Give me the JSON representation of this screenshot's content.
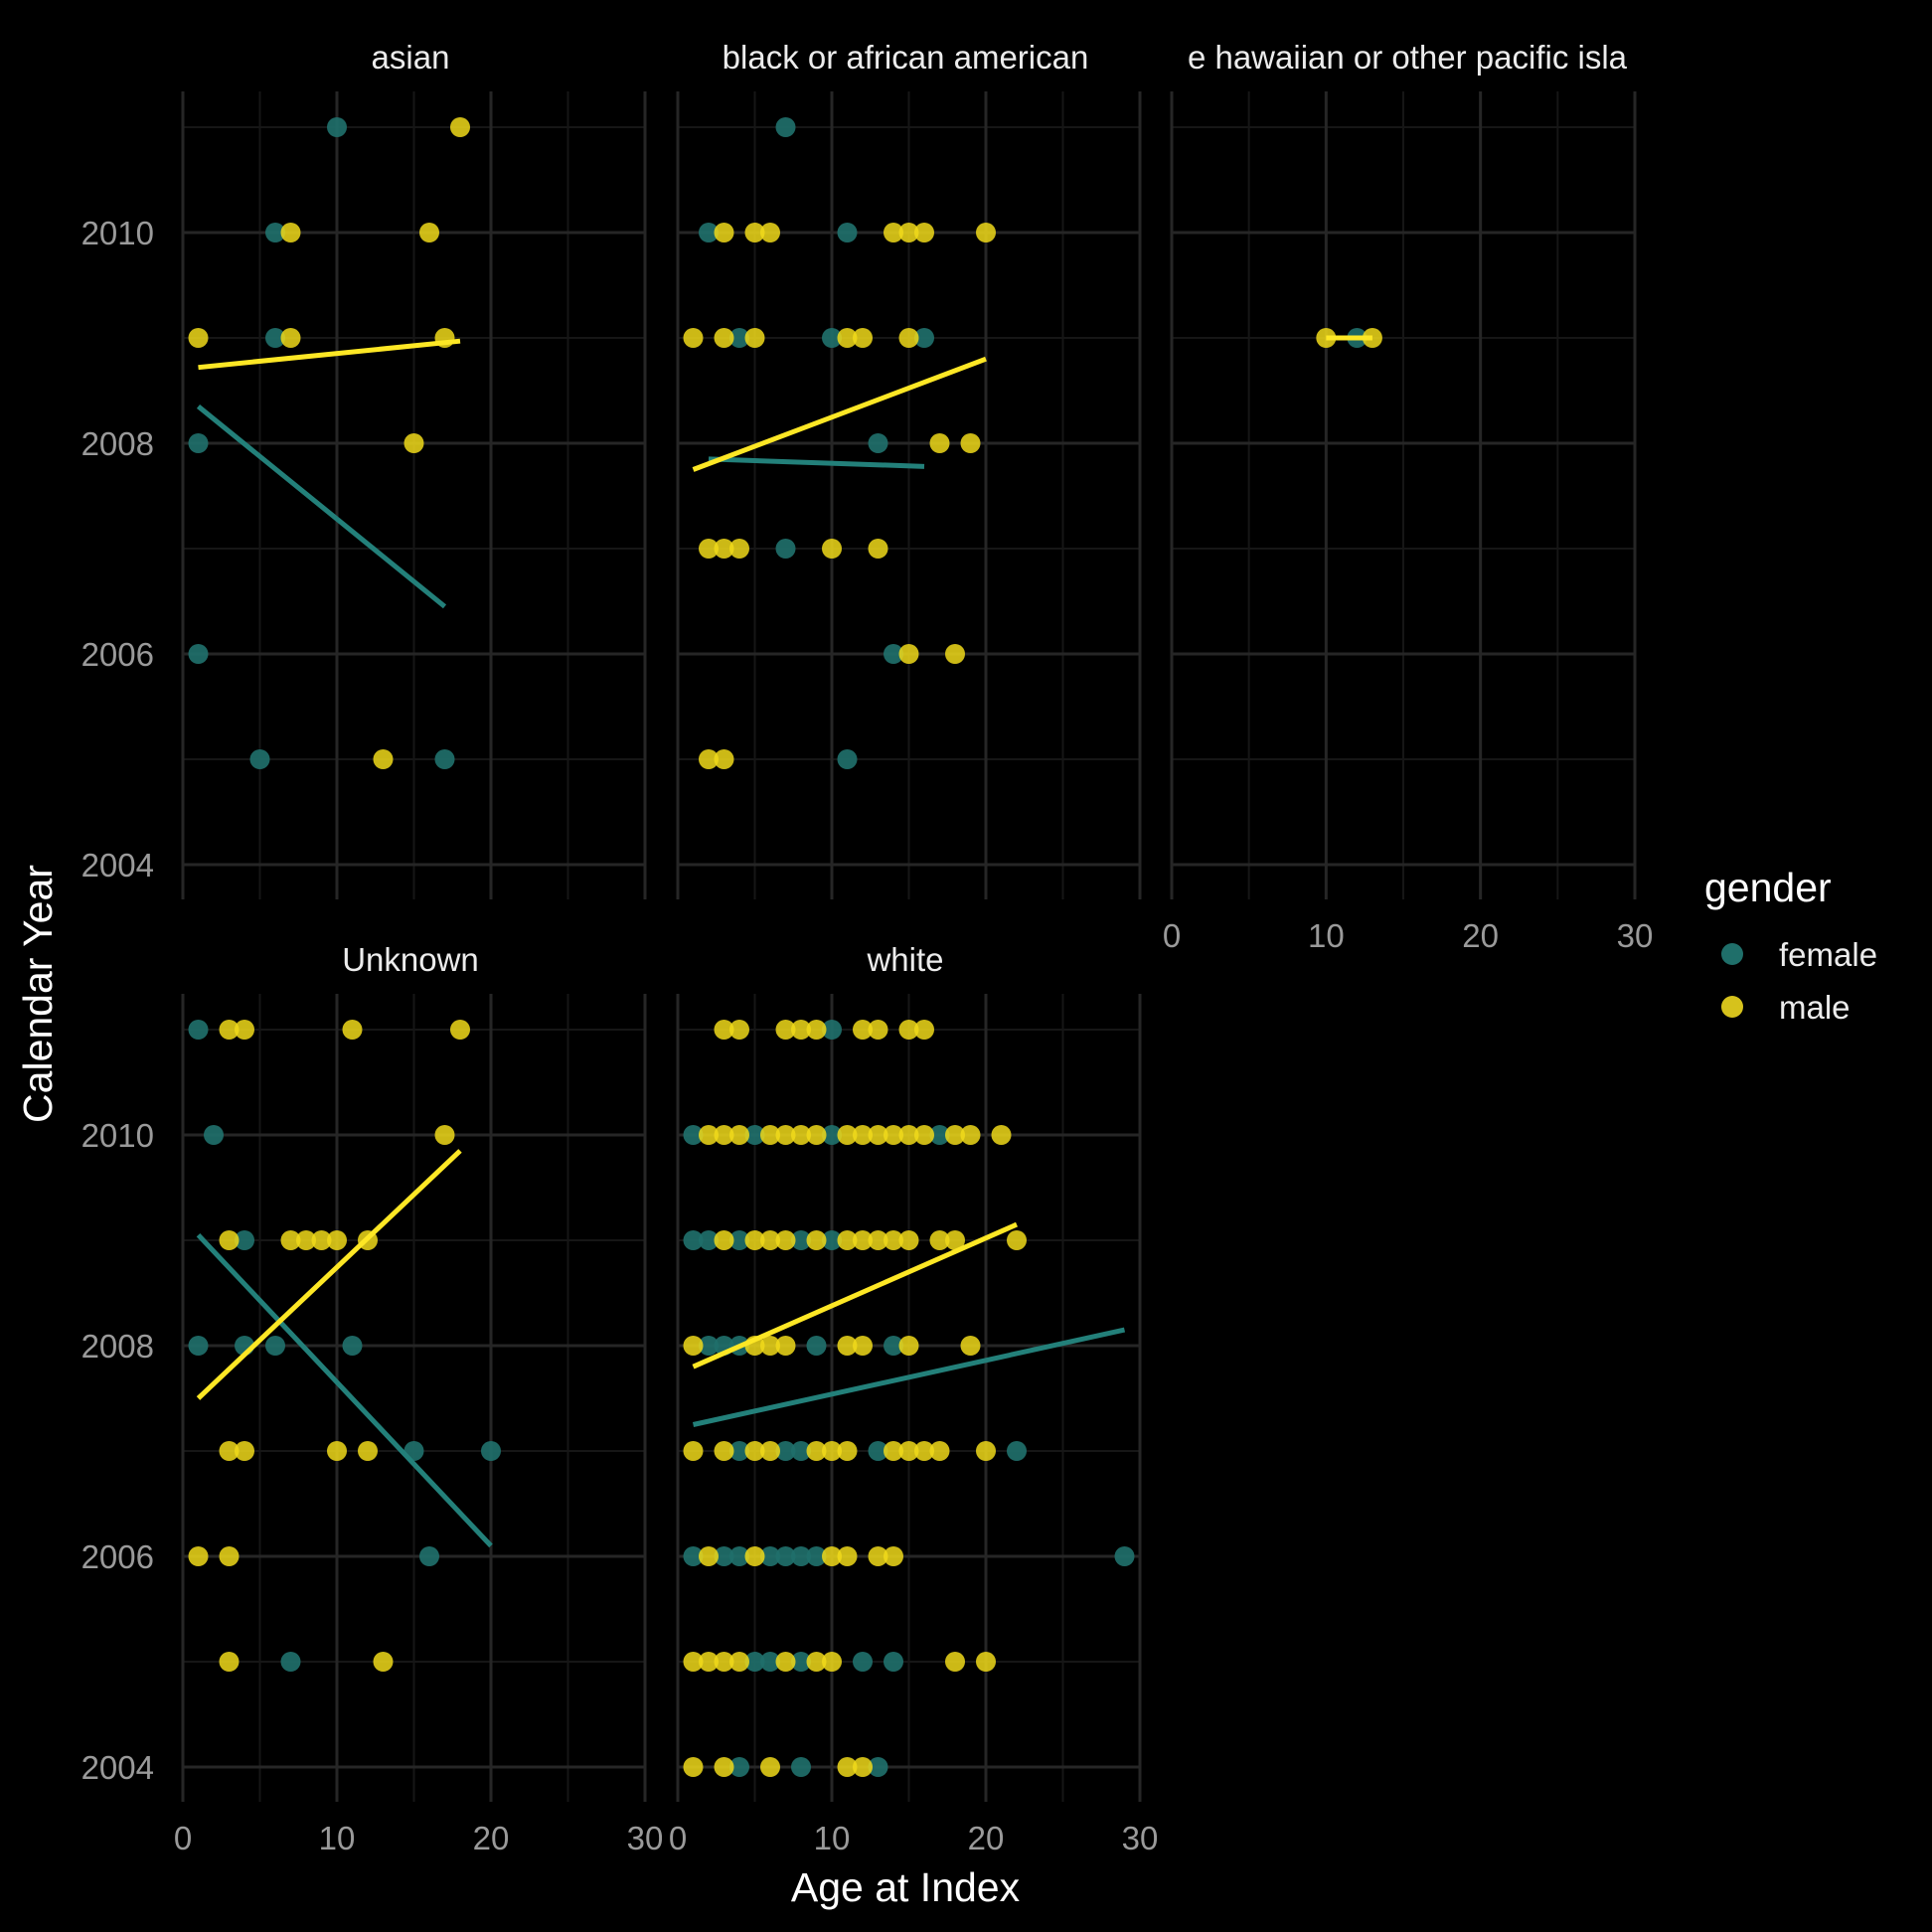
{
  "chart_data": {
    "type": "scatter",
    "title": "",
    "xlabel": "Age at Index",
    "ylabel": "Calendar Year",
    "xlim": [
      0,
      30
    ],
    "ylim": [
      2003.7,
      2011.3
    ],
    "x_ticks": [
      "0",
      "10",
      "20",
      "30"
    ],
    "y_ticks": [
      "2004",
      "2006",
      "2008",
      "2010"
    ],
    "grid": true,
    "smooth": "linear fit per gender",
    "legend": {
      "title": "gender",
      "position": "right",
      "entries": [
        {
          "name": "female",
          "color": "#1f6f6a"
        },
        {
          "name": "male",
          "color": "#f0d91a"
        }
      ]
    },
    "colors": {
      "female": "#1f6f6a",
      "male": "#f0d91a",
      "female_line": "#23807a",
      "male_line": "#fde725",
      "background": "#000000"
    },
    "panels": [
      {
        "strip": "asian",
        "female": [
          [
            10,
            2011
          ],
          [
            6,
            2010
          ],
          [
            6,
            2009
          ],
          [
            1,
            2008
          ],
          [
            1,
            2006
          ],
          [
            5,
            2005
          ],
          [
            17,
            2005
          ]
        ],
        "male": [
          [
            18,
            2011
          ],
          [
            7,
            2010
          ],
          [
            16,
            2010
          ],
          [
            1,
            2009
          ],
          [
            7,
            2009
          ],
          [
            17,
            2009
          ],
          [
            15,
            2008
          ],
          [
            13,
            2005
          ]
        ],
        "fit_female": [
          [
            1,
            2008.35
          ],
          [
            17,
            2006.45
          ]
        ],
        "fit_male": [
          [
            1,
            2008.72
          ],
          [
            18,
            2008.97
          ]
        ]
      },
      {
        "strip": "black or african american",
        "female": [
          [
            7,
            2011
          ],
          [
            2,
            2010
          ],
          [
            11,
            2010
          ],
          [
            4,
            2009
          ],
          [
            10,
            2009
          ],
          [
            16,
            2009
          ],
          [
            13,
            2008
          ],
          [
            7,
            2007
          ],
          [
            14,
            2006
          ],
          [
            11,
            2005
          ]
        ],
        "male": [
          [
            3,
            2010
          ],
          [
            5,
            2010
          ],
          [
            6,
            2010
          ],
          [
            14,
            2010
          ],
          [
            15,
            2010
          ],
          [
            16,
            2010
          ],
          [
            20,
            2010
          ],
          [
            1,
            2009
          ],
          [
            3,
            2009
          ],
          [
            5,
            2009
          ],
          [
            11,
            2009
          ],
          [
            12,
            2009
          ],
          [
            15,
            2009
          ],
          [
            17,
            2008
          ],
          [
            19,
            2008
          ],
          [
            2,
            2007
          ],
          [
            3,
            2007
          ],
          [
            4,
            2007
          ],
          [
            10,
            2007
          ],
          [
            13,
            2007
          ],
          [
            15,
            2006
          ],
          [
            18,
            2006
          ],
          [
            2,
            2005
          ],
          [
            3,
            2005
          ]
        ],
        "fit_female": [
          [
            2,
            2007.85
          ],
          [
            16,
            2007.78
          ]
        ],
        "fit_male": [
          [
            1,
            2007.75
          ],
          [
            20,
            2008.8
          ]
        ]
      },
      {
        "strip": "native hawaiian or other pacific islander",
        "female": [
          [
            12,
            2009
          ]
        ],
        "male": [
          [
            10,
            2009
          ],
          [
            13,
            2009
          ]
        ],
        "fit_female": [],
        "fit_male": [
          [
            10,
            2009
          ],
          [
            13,
            2009
          ]
        ]
      },
      {
        "strip": "Unknown",
        "female": [
          [
            1,
            2011
          ],
          [
            2,
            2010
          ],
          [
            4,
            2009
          ],
          [
            1,
            2008
          ],
          [
            4,
            2008
          ],
          [
            6,
            2008
          ],
          [
            11,
            2008
          ],
          [
            15,
            2007
          ],
          [
            20,
            2007
          ],
          [
            16,
            2006
          ],
          [
            7,
            2005
          ]
        ],
        "male": [
          [
            3,
            2011
          ],
          [
            4,
            2011
          ],
          [
            11,
            2011
          ],
          [
            18,
            2011
          ],
          [
            17,
            2010
          ],
          [
            3,
            2009
          ],
          [
            7,
            2009
          ],
          [
            8,
            2009
          ],
          [
            9,
            2009
          ],
          [
            10,
            2009
          ],
          [
            12,
            2009
          ],
          [
            3,
            2007
          ],
          [
            4,
            2007
          ],
          [
            10,
            2007
          ],
          [
            12,
            2007
          ],
          [
            1,
            2006
          ],
          [
            3,
            2006
          ],
          [
            3,
            2005
          ],
          [
            13,
            2005
          ]
        ],
        "fit_female": [
          [
            1,
            2009.05
          ],
          [
            20,
            2006.1
          ]
        ],
        "fit_male": [
          [
            1,
            2007.5
          ],
          [
            18,
            2009.85
          ]
        ]
      },
      {
        "strip": "white",
        "female": [
          [
            10,
            2011
          ],
          [
            1,
            2010
          ],
          [
            5,
            2010
          ],
          [
            10,
            2010
          ],
          [
            17,
            2010
          ],
          [
            1,
            2009
          ],
          [
            2,
            2009
          ],
          [
            4,
            2009
          ],
          [
            8,
            2009
          ],
          [
            10,
            2009
          ],
          [
            2,
            2008
          ],
          [
            3,
            2008
          ],
          [
            4,
            2008
          ],
          [
            9,
            2008
          ],
          [
            14,
            2008
          ],
          [
            4,
            2007
          ],
          [
            7,
            2007
          ],
          [
            8,
            2007
          ],
          [
            13,
            2007
          ],
          [
            22,
            2007
          ],
          [
            1,
            2006
          ],
          [
            3,
            2006
          ],
          [
            4,
            2006
          ],
          [
            6,
            2006
          ],
          [
            7,
            2006
          ],
          [
            8,
            2006
          ],
          [
            9,
            2006
          ],
          [
            29,
            2006
          ],
          [
            5,
            2005
          ],
          [
            6,
            2005
          ],
          [
            8,
            2005
          ],
          [
            12,
            2005
          ],
          [
            14,
            2005
          ],
          [
            4,
            2004
          ],
          [
            8,
            2004
          ],
          [
            13,
            2004
          ]
        ],
        "male": [
          [
            3,
            2011
          ],
          [
            4,
            2011
          ],
          [
            7,
            2011
          ],
          [
            8,
            2011
          ],
          [
            9,
            2011
          ],
          [
            12,
            2011
          ],
          [
            13,
            2011
          ],
          [
            15,
            2011
          ],
          [
            16,
            2011
          ],
          [
            2,
            2010
          ],
          [
            3,
            2010
          ],
          [
            4,
            2010
          ],
          [
            6,
            2010
          ],
          [
            7,
            2010
          ],
          [
            8,
            2010
          ],
          [
            9,
            2010
          ],
          [
            11,
            2010
          ],
          [
            12,
            2010
          ],
          [
            13,
            2010
          ],
          [
            14,
            2010
          ],
          [
            15,
            2010
          ],
          [
            16,
            2010
          ],
          [
            18,
            2010
          ],
          [
            19,
            2010
          ],
          [
            21,
            2010
          ],
          [
            3,
            2009
          ],
          [
            5,
            2009
          ],
          [
            6,
            2009
          ],
          [
            7,
            2009
          ],
          [
            9,
            2009
          ],
          [
            11,
            2009
          ],
          [
            12,
            2009
          ],
          [
            13,
            2009
          ],
          [
            14,
            2009
          ],
          [
            15,
            2009
          ],
          [
            17,
            2009
          ],
          [
            18,
            2009
          ],
          [
            22,
            2009
          ],
          [
            1,
            2008
          ],
          [
            5,
            2008
          ],
          [
            6,
            2008
          ],
          [
            7,
            2008
          ],
          [
            11,
            2008
          ],
          [
            12,
            2008
          ],
          [
            15,
            2008
          ],
          [
            19,
            2008
          ],
          [
            1,
            2007
          ],
          [
            3,
            2007
          ],
          [
            5,
            2007
          ],
          [
            6,
            2007
          ],
          [
            9,
            2007
          ],
          [
            10,
            2007
          ],
          [
            11,
            2007
          ],
          [
            14,
            2007
          ],
          [
            15,
            2007
          ],
          [
            16,
            2007
          ],
          [
            17,
            2007
          ],
          [
            20,
            2007
          ],
          [
            2,
            2006
          ],
          [
            5,
            2006
          ],
          [
            10,
            2006
          ],
          [
            11,
            2006
          ],
          [
            13,
            2006
          ],
          [
            14,
            2006
          ],
          [
            1,
            2005
          ],
          [
            2,
            2005
          ],
          [
            3,
            2005
          ],
          [
            4,
            2005
          ],
          [
            7,
            2005
          ],
          [
            9,
            2005
          ],
          [
            10,
            2005
          ],
          [
            18,
            2005
          ],
          [
            20,
            2005
          ],
          [
            1,
            2004
          ],
          [
            3,
            2004
          ],
          [
            6,
            2004
          ],
          [
            11,
            2004
          ],
          [
            12,
            2004
          ]
        ],
        "fit_female": [
          [
            1,
            2007.25
          ],
          [
            29,
            2008.15
          ]
        ],
        "fit_male": [
          [
            1,
            2007.8
          ],
          [
            22,
            2009.15
          ]
        ]
      }
    ]
  },
  "strip_labels": [
    "asian",
    "black or african american",
    "e hawaiian or other pacific isla",
    "Unknown",
    "white"
  ]
}
